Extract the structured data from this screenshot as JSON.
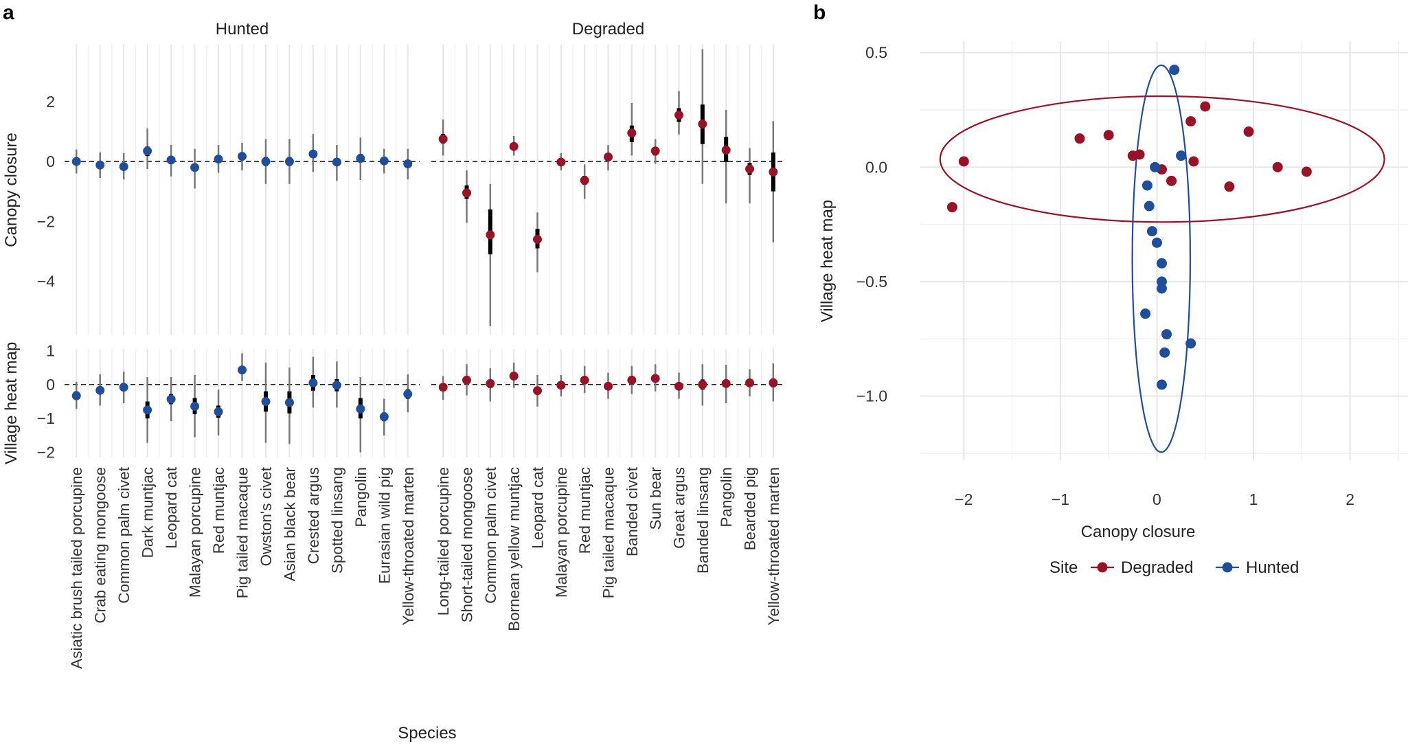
{
  "panel_labels": {
    "a": "a",
    "b": "b"
  },
  "colors": {
    "degraded": "#9a1226",
    "hunted": "#1f4f9a",
    "grid": "#e6e6e6",
    "error": "#777777",
    "strip": "#eeeeee"
  },
  "chart_data": [
    {
      "type": "scatter",
      "subtype": "forest-plot",
      "panel": "a",
      "xlabel": "Species",
      "facets": [
        "Hunted",
        "Degraded"
      ],
      "rows": [
        {
          "key": "canopy",
          "ylabel": "Canopy closure",
          "ylim": [
            -5.8,
            3.9
          ],
          "yticks": [
            2,
            0,
            -2,
            -4
          ],
          "ytick_labels": [
            "2",
            "0",
            "−2",
            "−4"
          ]
        },
        {
          "key": "village",
          "ylabel": "Village heat map",
          "ylim": [
            -2.15,
            1.05
          ],
          "yticks": [
            1,
            0,
            -1,
            -2
          ],
          "ytick_labels": [
            "1",
            "0",
            "−1",
            "−2"
          ]
        }
      ],
      "hunted": {
        "species": [
          "Asiatic brush tailed porcupine",
          "Crab eating mongoose",
          "Common palm civet",
          "Dark muntjac",
          "Leopard cat",
          "Malayan porcupine",
          "Red muntjac",
          "Pig tailed macaque",
          "Owston's civet",
          "Asian black bear",
          "Crested argus",
          "Spotted linsang",
          "Pangolin",
          "Eurasian wild pig",
          "Yellow-throated marten"
        ],
        "canopy": {
          "mean": [
            0.0,
            -0.12,
            -0.17,
            0.35,
            0.05,
            -0.2,
            0.08,
            0.17,
            0.0,
            0.0,
            0.25,
            -0.02,
            0.1,
            0.02,
            -0.08
          ],
          "inner": [
            [
              -0.1,
              0.1
            ],
            [
              -0.22,
              -0.02
            ],
            [
              -0.28,
              -0.06
            ],
            [
              0.18,
              0.5
            ],
            [
              -0.08,
              0.18
            ],
            [
              -0.32,
              -0.08
            ],
            [
              -0.03,
              0.2
            ],
            [
              0.06,
              0.28
            ],
            [
              -0.15,
              0.15
            ],
            [
              -0.15,
              0.15
            ],
            [
              0.12,
              0.38
            ],
            [
              -0.12,
              0.08
            ],
            [
              -0.03,
              0.25
            ],
            [
              -0.08,
              0.12
            ],
            [
              -0.18,
              0.02
            ]
          ],
          "outer": [
            [
              -0.4,
              0.4
            ],
            [
              -0.55,
              0.3
            ],
            [
              -0.6,
              0.28
            ],
            [
              -0.25,
              1.1
            ],
            [
              -0.5,
              0.55
            ],
            [
              -0.9,
              0.42
            ],
            [
              -0.38,
              0.55
            ],
            [
              -0.3,
              0.62
            ],
            [
              -0.75,
              0.75
            ],
            [
              -0.75,
              0.75
            ],
            [
              -0.35,
              0.92
            ],
            [
              -0.65,
              0.55
            ],
            [
              -0.62,
              0.8
            ],
            [
              -0.4,
              0.42
            ],
            [
              -0.6,
              0.42
            ]
          ]
        },
        "village": {
          "mean": [
            -0.33,
            -0.17,
            -0.08,
            -0.75,
            -0.43,
            -0.64,
            -0.8,
            0.43,
            -0.5,
            -0.53,
            0.05,
            -0.02,
            -0.72,
            -0.95,
            -0.28
          ],
          "inner": [
            [
              -0.45,
              -0.2
            ],
            [
              -0.27,
              -0.07
            ],
            [
              -0.18,
              0.02
            ],
            [
              -1.0,
              -0.5
            ],
            [
              -0.58,
              -0.28
            ],
            [
              -0.87,
              -0.4
            ],
            [
              -0.98,
              -0.62
            ],
            [
              0.32,
              0.55
            ],
            [
              -0.8,
              -0.2
            ],
            [
              -0.85,
              -0.2
            ],
            [
              -0.18,
              0.28
            ],
            [
              -0.2,
              0.16
            ],
            [
              -1.0,
              -0.4
            ],
            [
              -1.08,
              -0.82
            ],
            [
              -0.42,
              -0.14
            ]
          ],
          "outer": [
            [
              -0.72,
              0.08
            ],
            [
              -0.62,
              0.3
            ],
            [
              -0.55,
              0.38
            ],
            [
              -1.72,
              0.22
            ],
            [
              -1.08,
              0.22
            ],
            [
              -1.55,
              0.28
            ],
            [
              -1.5,
              -0.15
            ],
            [
              0.1,
              0.92
            ],
            [
              -1.72,
              0.65
            ],
            [
              -1.75,
              0.5
            ],
            [
              -0.68,
              0.82
            ],
            [
              -0.68,
              0.68
            ],
            [
              -2.0,
              0.22
            ],
            [
              -1.5,
              -0.42
            ],
            [
              -0.82,
              0.3
            ]
          ]
        }
      },
      "degraded": {
        "species": [
          "Long-tailed porcupine",
          "Short-tailed mongoose",
          "Common palm civet",
          "Bornean yellow muntjac",
          "Leopard cat",
          "Malayan porcupine",
          "Red muntjac",
          "Pig tailed macaque",
          "Banded civet",
          "Sun bear",
          "Great argus",
          "Banded linsang",
          "Pangolin",
          "Bearded pig",
          "Yellow-throated marten"
        ],
        "canopy": {
          "mean": [
            0.75,
            -1.05,
            -2.45,
            0.5,
            -2.6,
            -0.02,
            -0.63,
            0.15,
            0.95,
            0.35,
            1.55,
            1.25,
            0.38,
            -0.25,
            -0.35
          ],
          "inner": [
            [
              0.6,
              0.92
            ],
            [
              -1.25,
              -0.8
            ],
            [
              -3.1,
              -1.6
            ],
            [
              0.42,
              0.6
            ],
            [
              -2.9,
              -2.25
            ],
            [
              -0.1,
              0.05
            ],
            [
              -0.78,
              -0.48
            ],
            [
              0.05,
              0.25
            ],
            [
              0.65,
              1.2
            ],
            [
              0.2,
              0.48
            ],
            [
              1.32,
              1.78
            ],
            [
              0.58,
              1.9
            ],
            [
              -0.02,
              0.82
            ],
            [
              -0.45,
              -0.05
            ],
            [
              -1.0,
              0.3
            ]
          ],
          "outer": [
            [
              0.2,
              1.4
            ],
            [
              -2.05,
              -0.3
            ],
            [
              -5.5,
              -0.75
            ],
            [
              0.2,
              0.85
            ],
            [
              -3.7,
              -1.7
            ],
            [
              -0.3,
              0.28
            ],
            [
              -1.25,
              -0.1
            ],
            [
              -0.3,
              0.55
            ],
            [
              0.2,
              1.95
            ],
            [
              -0.08,
              0.75
            ],
            [
              0.9,
              2.35
            ],
            [
              -0.75,
              3.75
            ],
            [
              -1.4,
              1.72
            ],
            [
              -1.4,
              0.45
            ],
            [
              -2.7,
              1.35
            ]
          ]
        },
        "village": {
          "mean": [
            -0.08,
            0.13,
            0.03,
            0.25,
            -0.18,
            -0.02,
            0.13,
            -0.05,
            0.13,
            0.18,
            -0.05,
            0.0,
            0.03,
            0.05,
            0.05
          ],
          "inner": [
            [
              -0.15,
              0.0
            ],
            [
              0.02,
              0.25
            ],
            [
              -0.1,
              0.15
            ],
            [
              0.15,
              0.35
            ],
            [
              -0.28,
              -0.08
            ],
            [
              -0.1,
              0.06
            ],
            [
              0.03,
              0.23
            ],
            [
              -0.15,
              0.05
            ],
            [
              0.03,
              0.23
            ],
            [
              0.08,
              0.28
            ],
            [
              -0.15,
              0.05
            ],
            [
              -0.15,
              0.15
            ],
            [
              -0.08,
              0.14
            ],
            [
              -0.05,
              0.15
            ],
            [
              -0.08,
              0.18
            ]
          ],
          "outer": [
            [
              -0.45,
              0.25
            ],
            [
              -0.32,
              0.6
            ],
            [
              -0.5,
              0.48
            ],
            [
              -0.1,
              0.65
            ],
            [
              -0.65,
              0.28
            ],
            [
              -0.35,
              0.28
            ],
            [
              -0.25,
              0.55
            ],
            [
              -0.42,
              0.35
            ],
            [
              -0.28,
              0.55
            ],
            [
              -0.2,
              0.6
            ],
            [
              -0.42,
              0.35
            ],
            [
              -0.62,
              0.6
            ],
            [
              -0.55,
              0.58
            ],
            [
              -0.35,
              0.45
            ],
            [
              -0.5,
              0.62
            ]
          ]
        }
      }
    },
    {
      "type": "scatter",
      "panel": "b",
      "xlabel": "Canopy closure",
      "ylabel": "Village heat map",
      "xlim": [
        -2.45,
        2.6
      ],
      "ylim": [
        -1.28,
        0.55
      ],
      "xticks": [
        -2,
        -1,
        0,
        1,
        2
      ],
      "xtick_labels": [
        "−2",
        "−1",
        "0",
        "1",
        "2"
      ],
      "yticks": [
        0.5,
        0.0,
        -0.5,
        -1.0
      ],
      "ytick_labels": [
        "0.5",
        "0.0",
        "−0.5",
        "−1.0"
      ],
      "legend": {
        "title": "Site",
        "position": "bottom",
        "entries": [
          "Degraded",
          "Hunted"
        ]
      },
      "series": [
        {
          "name": "Degraded",
          "points": [
            [
              -2.12,
              -0.175
            ],
            [
              -2.0,
              0.025
            ],
            [
              -0.8,
              0.125
            ],
            [
              -0.5,
              0.14
            ],
            [
              -0.25,
              0.05
            ],
            [
              -0.18,
              0.055
            ],
            [
              0.05,
              -0.01
            ],
            [
              0.15,
              -0.06
            ],
            [
              0.35,
              0.2
            ],
            [
              0.38,
              0.025
            ],
            [
              0.5,
              0.265
            ],
            [
              0.75,
              -0.085
            ],
            [
              0.95,
              0.155
            ],
            [
              1.25,
              0.0
            ],
            [
              1.55,
              -0.02
            ]
          ],
          "ellipse": {
            "cx": 0.055,
            "cy": 0.035,
            "rx": 2.3,
            "ry": 0.275
          }
        },
        {
          "name": "Hunted",
          "points": [
            [
              0.18,
              0.425
            ],
            [
              -0.02,
              0.0
            ],
            [
              0.25,
              0.05
            ],
            [
              -0.1,
              -0.08
            ],
            [
              -0.08,
              -0.17
            ],
            [
              -0.05,
              -0.28
            ],
            [
              0.0,
              -0.33
            ],
            [
              0.05,
              -0.42
            ],
            [
              0.05,
              -0.5
            ],
            [
              0.05,
              -0.53
            ],
            [
              -0.12,
              -0.64
            ],
            [
              0.1,
              -0.73
            ],
            [
              0.35,
              -0.77
            ],
            [
              0.08,
              -0.81
            ],
            [
              0.05,
              -0.95
            ]
          ],
          "ellipse": {
            "cx": 0.045,
            "cy": -0.4,
            "rx": 0.3,
            "ry": 0.845
          }
        }
      ]
    }
  ]
}
